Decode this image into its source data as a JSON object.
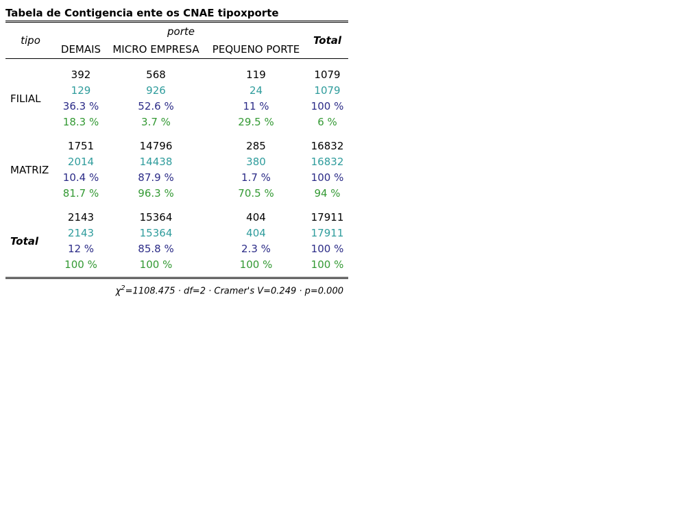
{
  "title": "Tabela de Contigencia ente os CNAE tipoxporte",
  "header": {
    "row_var": "tipo",
    "col_var": "porte",
    "total_label": "Total",
    "columns": [
      "DEMAIS",
      "MICRO EMPRESA",
      "PEQUENO PORTE"
    ]
  },
  "rows": [
    {
      "label": "FILIAL",
      "observed": [
        "392",
        "568",
        "119",
        "1079"
      ],
      "expected": [
        "129",
        "926",
        "24",
        "1079"
      ],
      "row_pct": [
        "36.3 %",
        "52.6 %",
        "11 %",
        "100 %"
      ],
      "col_pct": [
        "18.3 %",
        "3.7 %",
        "29.5 %",
        "6 %"
      ]
    },
    {
      "label": "MATRIZ",
      "observed": [
        "1751",
        "14796",
        "285",
        "16832"
      ],
      "expected": [
        "2014",
        "14438",
        "380",
        "16832"
      ],
      "row_pct": [
        "10.4 %",
        "87.9 %",
        "1.7 %",
        "100 %"
      ],
      "col_pct": [
        "81.7 %",
        "96.3 %",
        "70.5 %",
        "94 %"
      ]
    },
    {
      "label": "Total",
      "observed": [
        "2143",
        "15364",
        "404",
        "17911"
      ],
      "expected": [
        "2143",
        "15364",
        "404",
        "17911"
      ],
      "row_pct": [
        "12 %",
        "85.8 %",
        "2.3 %",
        "100 %"
      ],
      "col_pct": [
        "100 %",
        "100 %",
        "100 %",
        "100 %"
      ]
    }
  ],
  "stats": {
    "chi_symbol": "χ",
    "chi_exp": "2",
    "text": "=1108.475 · df=2 · Cramer's V=0.249 · p=0.000"
  },
  "colors": {
    "observed": "#000000",
    "expected": "#2f9c9c",
    "row_pct": "#2b2b87",
    "col_pct": "#339933"
  }
}
